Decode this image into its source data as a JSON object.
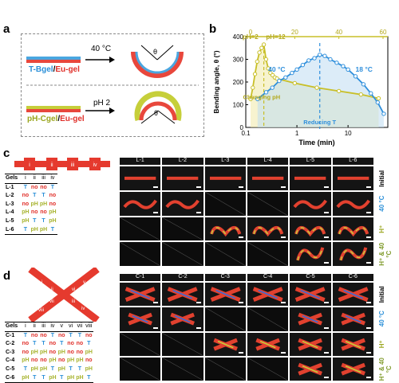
{
  "panels": {
    "a": "a",
    "b": "b",
    "c": "c",
    "d": "d"
  },
  "panel_a": {
    "top_material_1": "T-Bgel",
    "top_material_sep": "/",
    "top_material_2": "Eu-gel",
    "top_condition": "40 °C",
    "bottom_material_1": "pH-Cgel",
    "bottom_material_sep": "/",
    "bottom_material_2": "Eu-gel",
    "bottom_condition": "pH 2",
    "angle_symbol": "θ",
    "colors": {
      "T": "#4aa6e0",
      "Eu": "#e8473c",
      "pH": "#c6cf3a"
    }
  },
  "chart_data": {
    "type": "line",
    "ylabel": "Bending angle, θ (°)",
    "xlabel_bottom": "Time (min)",
    "xscale_bottom": "log",
    "xlim_bottom": [
      0.1,
      60
    ],
    "xticks_bottom": [
      "0.1",
      "1",
      "10"
    ],
    "xlim_top": [
      0,
      60
    ],
    "xticks_top": [
      "0",
      "20",
      "40",
      "60"
    ],
    "ylim": [
      0,
      400
    ],
    "yticks": [
      "0",
      "100",
      "200",
      "300",
      "400"
    ],
    "series": [
      {
        "name": "Changing pH",
        "color": "#c8bf28",
        "axis": "top",
        "x": [
          0,
          1,
          2,
          3,
          4,
          5,
          6,
          7,
          8,
          9,
          10,
          11,
          12,
          20,
          30,
          40,
          50,
          58
        ],
        "y": [
          125,
          175,
          235,
          290,
          330,
          350,
          365,
          300,
          260,
          240,
          230,
          220,
          215,
          195,
          175,
          160,
          145,
          128
        ]
      },
      {
        "name": "18 °C",
        "color": "#2f8fdc",
        "axis": "bottom",
        "x": [
          0.17,
          0.25,
          0.33,
          0.45,
          0.6,
          0.8,
          1.0,
          1.3,
          1.7,
          2.2,
          2.8,
          3.5,
          4.5,
          6,
          8,
          10,
          14,
          20,
          28,
          38,
          50
        ],
        "y": [
          125,
          155,
          175,
          205,
          220,
          240,
          255,
          275,
          295,
          305,
          320,
          315,
          300,
          285,
          270,
          255,
          225,
          190,
          150,
          110,
          60
        ]
      }
    ],
    "annotations": {
      "ph2": "pH=2",
      "ph12": "pH=12",
      "t40": "40 °C",
      "t18": "18 °C",
      "changing_ph": "Changing pH",
      "reducing_t": "Reducing T"
    }
  },
  "panel_c": {
    "strip_labels": [
      "i",
      "ii",
      "iii",
      "iv"
    ],
    "table": {
      "header": [
        "Gels",
        "i",
        "ii",
        "iii",
        "iv"
      ],
      "rows": [
        [
          "L-1",
          "T",
          "no",
          "no",
          "T"
        ],
        [
          "L-2",
          "no",
          "T",
          "T",
          "no"
        ],
        [
          "L-3",
          "no",
          "pH",
          "pH",
          "no"
        ],
        [
          "L-4",
          "pH",
          "no",
          "no",
          "pH"
        ],
        [
          "L-5",
          "pH",
          "T",
          "T",
          "pH"
        ],
        [
          "L-6",
          "T",
          "pH",
          "pH",
          "T"
        ]
      ]
    },
    "columns": [
      "L-1",
      "L-2",
      "L-3",
      "L-4",
      "L-5",
      "L-6"
    ],
    "row_labels": [
      "Initial",
      "40 °C",
      "H⁺",
      "H⁺ & 40 °C"
    ]
  },
  "panel_d": {
    "cross_labels": [
      "i",
      "ii",
      "iii",
      "iv",
      "v",
      "vi",
      "vii",
      "viii"
    ],
    "table": {
      "header": [
        "Gels",
        "i",
        "ii",
        "iii",
        "iv",
        "v",
        "vi",
        "vii",
        "viii"
      ],
      "rows": [
        [
          "C-1",
          "T",
          "no",
          "no",
          "T",
          "no",
          "T",
          "T",
          "no"
        ],
        [
          "C-2",
          "no",
          "T",
          "T",
          "no",
          "T",
          "no",
          "no",
          "T"
        ],
        [
          "C-3",
          "no",
          "pH",
          "pH",
          "no",
          "pH",
          "no",
          "no",
          "pH"
        ],
        [
          "C-4",
          "pH",
          "no",
          "no",
          "pH",
          "no",
          "pH",
          "pH",
          "no"
        ],
        [
          "C-5",
          "T",
          "pH",
          "pH",
          "T",
          "pH",
          "T",
          "T",
          "pH"
        ],
        [
          "C-6",
          "pH",
          "T",
          "T",
          "pH",
          "T",
          "pH",
          "pH",
          "T"
        ]
      ]
    },
    "columns": [
      "C-1",
      "C-2",
      "C-3",
      "C-4",
      "C-5",
      "C-6"
    ],
    "row_labels": [
      "Initial",
      "40 °C",
      "H⁺",
      "H⁺ & 40 °C"
    ]
  }
}
